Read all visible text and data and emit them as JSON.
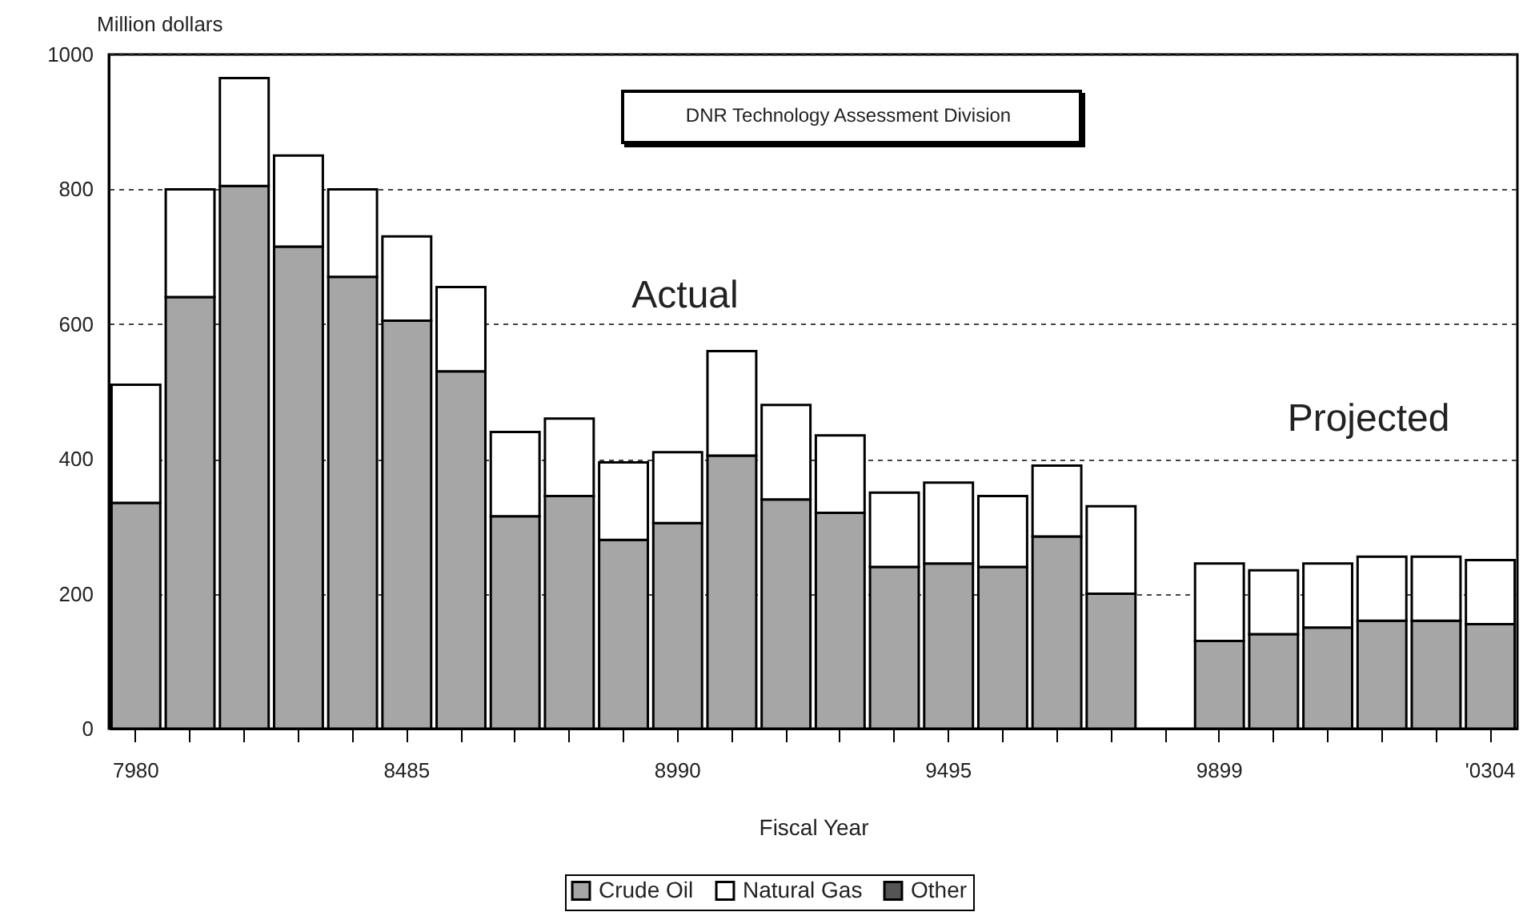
{
  "chart_data": {
    "type": "bar",
    "stacked": true,
    "xlabel": "Fiscal Year",
    "ylabel": "Million dollars",
    "categories": [
      "7980",
      null,
      null,
      null,
      null,
      "8485",
      null,
      null,
      null,
      null,
      "8990",
      null,
      null,
      null,
      null,
      "9495",
      null,
      null,
      null,
      null,
      "9899",
      null,
      null,
      null,
      null,
      "'0304"
    ],
    "series": [
      {
        "name": "Crude Oil",
        "color": "#a6a6a6",
        "values": [
          335,
          640,
          805,
          715,
          670,
          605,
          530,
          315,
          345,
          280,
          305,
          405,
          340,
          320,
          240,
          245,
          240,
          285,
          200,
          null,
          130,
          140,
          150,
          160,
          160,
          155
        ]
      },
      {
        "name": "Natural Gas",
        "color": "#ffffff",
        "values": [
          175,
          160,
          160,
          135,
          130,
          125,
          125,
          125,
          115,
          115,
          105,
          155,
          140,
          115,
          110,
          120,
          105,
          105,
          130,
          null,
          115,
          95,
          95,
          95,
          95,
          95
        ]
      },
      {
        "name": "Other",
        "color": "#555555",
        "values": [
          null,
          null,
          null,
          null,
          null,
          null,
          null,
          null,
          null,
          null,
          null,
          null,
          null,
          null,
          null,
          null,
          null,
          null,
          null,
          null,
          null,
          null,
          null,
          null,
          null,
          null
        ]
      }
    ],
    "ylim": [
      0,
      1000
    ],
    "yticks": [
      0,
      200,
      400,
      600,
      800,
      1000
    ],
    "grid": "y",
    "legend": "bottom",
    "annotations": [
      "DNR Technology Assessment Division",
      "Actual",
      "Projected"
    ]
  }
}
